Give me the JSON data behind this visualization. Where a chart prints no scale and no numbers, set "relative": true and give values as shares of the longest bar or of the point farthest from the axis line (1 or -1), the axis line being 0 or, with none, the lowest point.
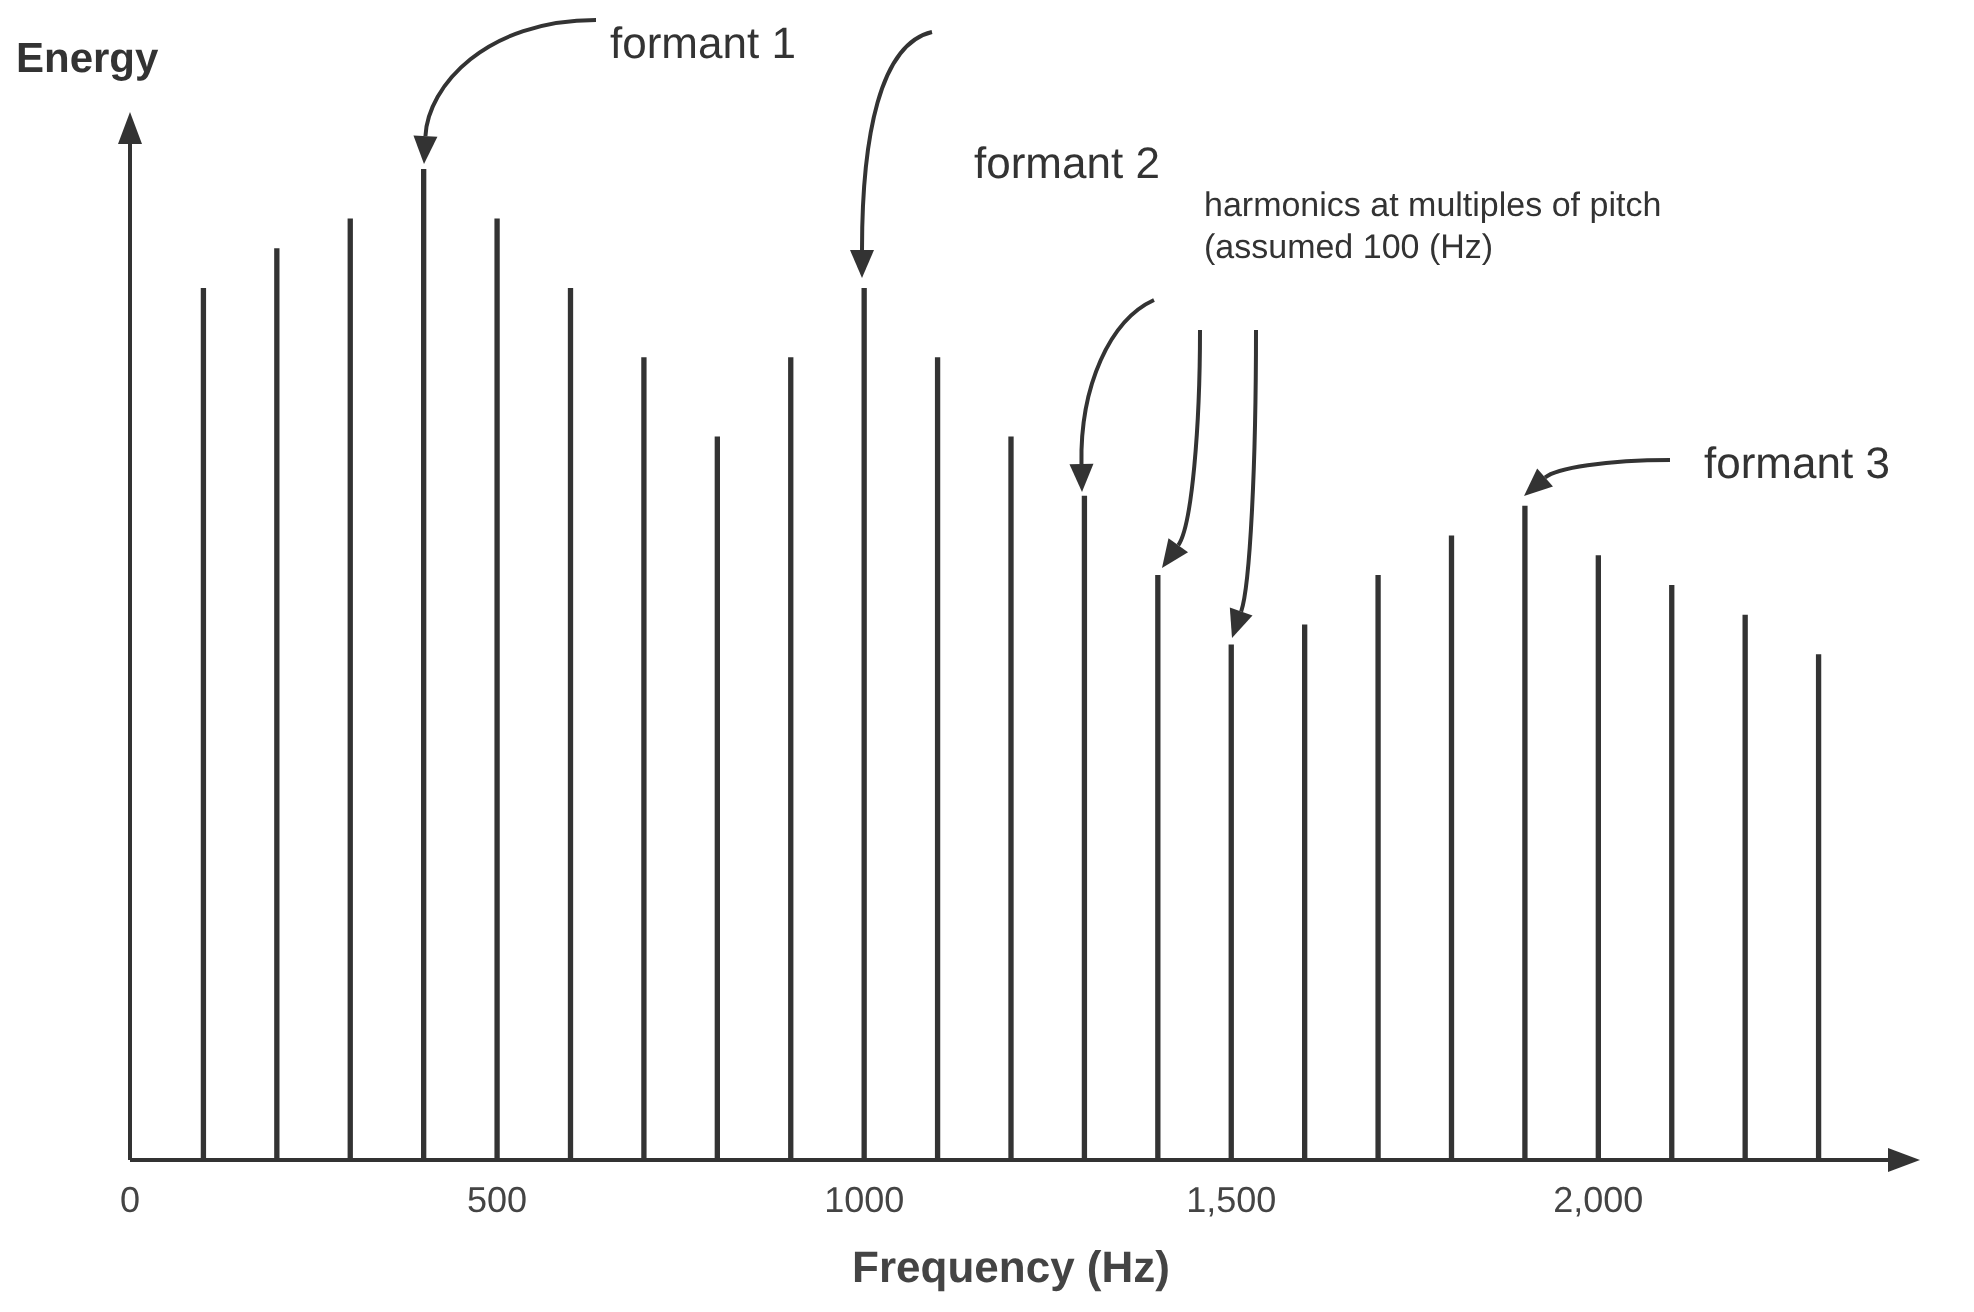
{
  "chart_data": {
    "type": "bar",
    "relative": true,
    "xlabel": "Frequency (Hz)",
    "ylabel": "Energy",
    "x": [
      100,
      200,
      300,
      400,
      500,
      600,
      700,
      800,
      900,
      1000,
      1100,
      1200,
      1300,
      1400,
      1500,
      1600,
      1700,
      1800,
      1900,
      2000,
      2100,
      2200,
      2300
    ],
    "values": [
      0.88,
      0.92,
      0.95,
      1,
      0.95,
      0.88,
      0.81,
      0.73,
      0.81,
      0.88,
      0.81,
      0.73,
      0.67,
      0.59,
      0.52,
      0.54,
      0.59,
      0.63,
      0.66,
      0.61,
      0.58,
      0.55,
      0.51
    ],
    "color": "#333333",
    "xlim": [
      0,
      2400
    ],
    "xticks": [
      0,
      500,
      1000,
      {
        "value": 1500,
        "label": "1,500"
      },
      {
        "value": 2000,
        "label": "2,000"
      }
    ],
    "grid": false,
    "annotations": [
      "formant 1",
      "formant 2",
      "harmonics at multiples of pitch (assumed 100 (Hz)",
      "formant 3"
    ]
  }
}
